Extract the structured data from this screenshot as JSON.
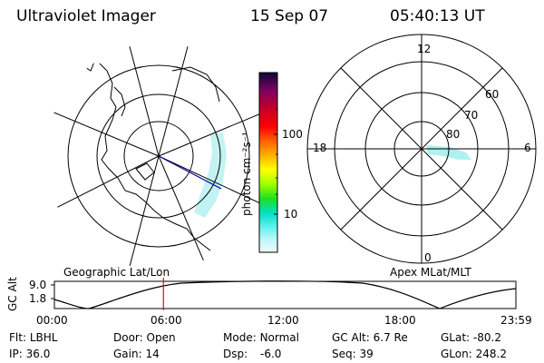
{
  "header": {
    "instrument": "Ultraviolet Imager",
    "date": "15 Sep 07",
    "time": "05:40:13 UT"
  },
  "left_panel": {
    "caption": "Geographic Lat/Lon"
  },
  "right_panel": {
    "caption": "Apex MLat/MLT",
    "mlt_labels": [
      "12",
      "18",
      "6",
      "0"
    ],
    "mlat_labels": [
      "60",
      "70",
      "80"
    ]
  },
  "colorbar": {
    "unit_label": "photon cm⁻²s⁻¹",
    "tick_labels": [
      "100",
      "10"
    ],
    "scale": "log",
    "colors": [
      "#0a0a3a",
      "#800060",
      "#d00020",
      "#ff0000",
      "#ff6000",
      "#ffb000",
      "#ffff00",
      "#a0ff00",
      "#20e020",
      "#00e0c0",
      "#60f0f0",
      "#c0f8f8",
      "#eefcfc"
    ]
  },
  "timeline": {
    "ylabel": "GC Alt",
    "y_ticks": [
      "9.0",
      "1.8"
    ],
    "x_ticks": [
      "00:00",
      "06:00",
      "12:00",
      "18:00",
      "23:59"
    ],
    "marker_hour": 5.67,
    "marker_color": "#ff0000"
  },
  "status": {
    "row1": [
      {
        "label": "Flt:",
        "value": "LBHL"
      },
      {
        "label": "Door:",
        "value": "Open"
      },
      {
        "label": "Mode:",
        "value": "Normal"
      },
      {
        "label": "GC Alt:",
        "value": "6.7 Re"
      },
      {
        "label": "GLat:",
        "value": "-80.2"
      }
    ],
    "row2": [
      {
        "label": "IP:",
        "value": "36.0"
      },
      {
        "label": "Gain:",
        "value": "14"
      },
      {
        "label": "Dsp:",
        "value": "-6.0"
      },
      {
        "label": "Seq:",
        "value": "39"
      },
      {
        "label": "GLon:",
        "value": "248.2"
      }
    ]
  }
}
